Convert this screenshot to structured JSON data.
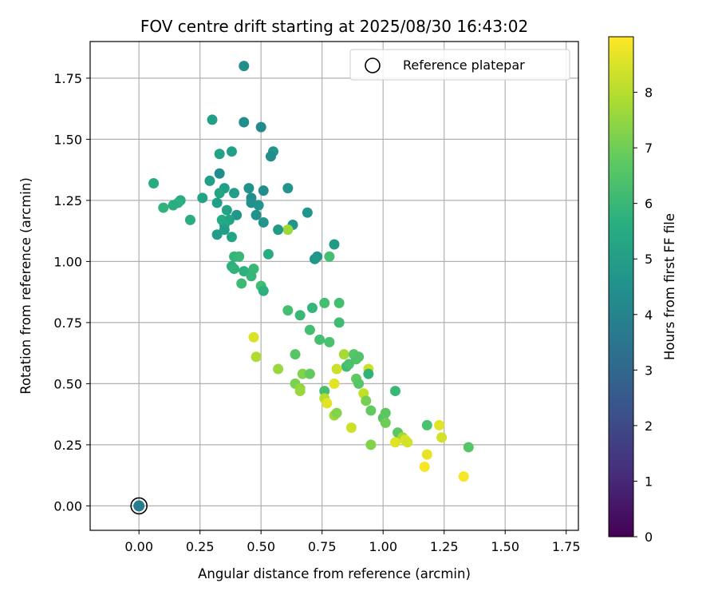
{
  "chart_data": {
    "type": "scatter",
    "title": "FOV centre drift starting at 2025/08/30 16:43:02",
    "xlabel": "Angular distance from reference (arcmin)",
    "ylabel": "Rotation from reference (arcmin)",
    "xlim": [
      -0.2,
      1.8
    ],
    "ylim": [
      -0.1,
      1.9
    ],
    "xticks": [
      "0.00",
      "0.25",
      "0.50",
      "0.75",
      "1.00",
      "1.25",
      "1.50",
      "1.75"
    ],
    "yticks": [
      "0.00",
      "0.25",
      "0.50",
      "0.75",
      "1.00",
      "1.25",
      "1.50",
      "1.75"
    ],
    "grid": true,
    "legend": {
      "position": "top-right",
      "entries": [
        "Reference platepar"
      ]
    },
    "colorbar": {
      "label": "Hours from first FF file",
      "range": [
        0,
        9
      ],
      "ticks": [
        "0",
        "1",
        "2",
        "3",
        "4",
        "5",
        "6",
        "7",
        "8"
      ],
      "colormap": "viridis"
    },
    "reference_point": {
      "x": 0.0,
      "y": 0.0,
      "hours": 3.8
    },
    "points": [
      {
        "x": 0.43,
        "y": 1.8,
        "h": 4.4
      },
      {
        "x": 0.3,
        "y": 1.58,
        "h": 5.1
      },
      {
        "x": 0.43,
        "y": 1.57,
        "h": 4.4
      },
      {
        "x": 0.5,
        "y": 1.55,
        "h": 4.3
      },
      {
        "x": 0.55,
        "y": 1.45,
        "h": 4.6
      },
      {
        "x": 0.54,
        "y": 1.43,
        "h": 4.4
      },
      {
        "x": 0.38,
        "y": 1.45,
        "h": 5.1
      },
      {
        "x": 0.33,
        "y": 1.44,
        "h": 5.2
      },
      {
        "x": 0.33,
        "y": 1.36,
        "h": 4.4
      },
      {
        "x": 0.29,
        "y": 1.33,
        "h": 5.1
      },
      {
        "x": 0.06,
        "y": 1.32,
        "h": 5.5
      },
      {
        "x": 0.45,
        "y": 1.3,
        "h": 4.5
      },
      {
        "x": 0.51,
        "y": 1.29,
        "h": 4.4
      },
      {
        "x": 0.61,
        "y": 1.3,
        "h": 4.6
      },
      {
        "x": 0.35,
        "y": 1.3,
        "h": 5.1
      },
      {
        "x": 0.39,
        "y": 1.28,
        "h": 5.0
      },
      {
        "x": 0.33,
        "y": 1.28,
        "h": 5.3
      },
      {
        "x": 0.26,
        "y": 1.26,
        "h": 5.2
      },
      {
        "x": 0.17,
        "y": 1.25,
        "h": 5.6
      },
      {
        "x": 0.46,
        "y": 1.26,
        "h": 4.4
      },
      {
        "x": 0.32,
        "y": 1.24,
        "h": 5.1
      },
      {
        "x": 0.46,
        "y": 1.24,
        "h": 4.5
      },
      {
        "x": 0.49,
        "y": 1.23,
        "h": 4.6
      },
      {
        "x": 0.16,
        "y": 1.24,
        "h": 5.7
      },
      {
        "x": 0.14,
        "y": 1.23,
        "h": 5.6
      },
      {
        "x": 0.1,
        "y": 1.22,
        "h": 5.8
      },
      {
        "x": 0.36,
        "y": 1.21,
        "h": 5.2
      },
      {
        "x": 0.48,
        "y": 1.19,
        "h": 4.5
      },
      {
        "x": 0.4,
        "y": 1.19,
        "h": 4.7
      },
      {
        "x": 0.69,
        "y": 1.2,
        "h": 4.7
      },
      {
        "x": 0.21,
        "y": 1.17,
        "h": 5.6
      },
      {
        "x": 0.34,
        "y": 1.17,
        "h": 5.5
      },
      {
        "x": 0.37,
        "y": 1.17,
        "h": 5.3
      },
      {
        "x": 0.51,
        "y": 1.16,
        "h": 4.6
      },
      {
        "x": 0.35,
        "y": 1.15,
        "h": 5.4
      },
      {
        "x": 0.63,
        "y": 1.15,
        "h": 4.6
      },
      {
        "x": 0.61,
        "y": 1.13,
        "h": 7.7
      },
      {
        "x": 0.57,
        "y": 1.13,
        "h": 4.9
      },
      {
        "x": 0.35,
        "y": 1.13,
        "h": 5.0
      },
      {
        "x": 0.32,
        "y": 1.11,
        "h": 5.0
      },
      {
        "x": 0.38,
        "y": 1.1,
        "h": 5.3
      },
      {
        "x": 0.8,
        "y": 1.07,
        "h": 4.9
      },
      {
        "x": 0.73,
        "y": 1.02,
        "h": 4.6
      },
      {
        "x": 0.72,
        "y": 1.01,
        "h": 4.7
      },
      {
        "x": 0.53,
        "y": 1.03,
        "h": 5.5
      },
      {
        "x": 0.39,
        "y": 1.02,
        "h": 5.9
      },
      {
        "x": 0.41,
        "y": 1.02,
        "h": 6.0
      },
      {
        "x": 0.78,
        "y": 1.02,
        "h": 6.3
      },
      {
        "x": 0.38,
        "y": 0.98,
        "h": 5.7
      },
      {
        "x": 0.39,
        "y": 0.97,
        "h": 5.8
      },
      {
        "x": 0.43,
        "y": 0.96,
        "h": 5.7
      },
      {
        "x": 0.47,
        "y": 0.97,
        "h": 6.0
      },
      {
        "x": 0.46,
        "y": 0.94,
        "h": 5.9
      },
      {
        "x": 0.42,
        "y": 0.91,
        "h": 6.1
      },
      {
        "x": 0.5,
        "y": 0.9,
        "h": 6.2
      },
      {
        "x": 0.51,
        "y": 0.88,
        "h": 5.7
      },
      {
        "x": 0.61,
        "y": 0.8,
        "h": 6.3
      },
      {
        "x": 0.66,
        "y": 0.78,
        "h": 6.0
      },
      {
        "x": 0.71,
        "y": 0.81,
        "h": 5.9
      },
      {
        "x": 0.76,
        "y": 0.83,
        "h": 6.3
      },
      {
        "x": 0.82,
        "y": 0.83,
        "h": 6.3
      },
      {
        "x": 0.7,
        "y": 0.72,
        "h": 6.3
      },
      {
        "x": 0.74,
        "y": 0.68,
        "h": 6.3
      },
      {
        "x": 0.78,
        "y": 0.67,
        "h": 6.4
      },
      {
        "x": 0.82,
        "y": 0.75,
        "h": 6.2
      },
      {
        "x": 0.47,
        "y": 0.69,
        "h": 8.5
      },
      {
        "x": 0.48,
        "y": 0.61,
        "h": 7.9
      },
      {
        "x": 0.64,
        "y": 0.62,
        "h": 6.6
      },
      {
        "x": 0.84,
        "y": 0.62,
        "h": 7.8
      },
      {
        "x": 0.88,
        "y": 0.62,
        "h": 6.6
      },
      {
        "x": 0.89,
        "y": 0.6,
        "h": 6.5
      },
      {
        "x": 0.9,
        "y": 0.61,
        "h": 6.5
      },
      {
        "x": 0.85,
        "y": 0.57,
        "h": 6.2
      },
      {
        "x": 0.86,
        "y": 0.58,
        "h": 6.4
      },
      {
        "x": 0.57,
        "y": 0.56,
        "h": 7.6
      },
      {
        "x": 0.81,
        "y": 0.56,
        "h": 8.3
      },
      {
        "x": 0.94,
        "y": 0.56,
        "h": 8.3
      },
      {
        "x": 0.94,
        "y": 0.54,
        "h": 5.8
      },
      {
        "x": 0.67,
        "y": 0.54,
        "h": 7.3
      },
      {
        "x": 0.7,
        "y": 0.54,
        "h": 6.8
      },
      {
        "x": 0.64,
        "y": 0.5,
        "h": 7.2
      },
      {
        "x": 0.66,
        "y": 0.48,
        "h": 7.5
      },
      {
        "x": 0.66,
        "y": 0.47,
        "h": 7.6
      },
      {
        "x": 0.89,
        "y": 0.52,
        "h": 6.8
      },
      {
        "x": 0.9,
        "y": 0.5,
        "h": 6.6
      },
      {
        "x": 0.8,
        "y": 0.5,
        "h": 8.6
      },
      {
        "x": 1.05,
        "y": 0.47,
        "h": 6.0
      },
      {
        "x": 0.76,
        "y": 0.47,
        "h": 6.3
      },
      {
        "x": 0.76,
        "y": 0.44,
        "h": 8.0
      },
      {
        "x": 0.77,
        "y": 0.42,
        "h": 8.6
      },
      {
        "x": 0.92,
        "y": 0.46,
        "h": 8.2
      },
      {
        "x": 0.93,
        "y": 0.43,
        "h": 7.1
      },
      {
        "x": 0.95,
        "y": 0.39,
        "h": 6.8
      },
      {
        "x": 0.8,
        "y": 0.37,
        "h": 7.7
      },
      {
        "x": 0.81,
        "y": 0.38,
        "h": 7.3
      },
      {
        "x": 1.0,
        "y": 0.36,
        "h": 6.6
      },
      {
        "x": 1.01,
        "y": 0.38,
        "h": 6.7
      },
      {
        "x": 1.01,
        "y": 0.34,
        "h": 7.0
      },
      {
        "x": 0.87,
        "y": 0.32,
        "h": 8.3
      },
      {
        "x": 1.06,
        "y": 0.3,
        "h": 6.7
      },
      {
        "x": 1.08,
        "y": 0.28,
        "h": 7.7
      },
      {
        "x": 1.05,
        "y": 0.26,
        "h": 8.6
      },
      {
        "x": 1.09,
        "y": 0.27,
        "h": 8.5
      },
      {
        "x": 1.1,
        "y": 0.26,
        "h": 8.4
      },
      {
        "x": 1.18,
        "y": 0.33,
        "h": 6.4
      },
      {
        "x": 1.23,
        "y": 0.33,
        "h": 8.6
      },
      {
        "x": 1.24,
        "y": 0.28,
        "h": 8.4
      },
      {
        "x": 0.95,
        "y": 0.25,
        "h": 7.3
      },
      {
        "x": 1.35,
        "y": 0.24,
        "h": 6.6
      },
      {
        "x": 1.18,
        "y": 0.21,
        "h": 8.7
      },
      {
        "x": 1.17,
        "y": 0.16,
        "h": 8.9
      },
      {
        "x": 1.33,
        "y": 0.12,
        "h": 8.9
      }
    ]
  }
}
